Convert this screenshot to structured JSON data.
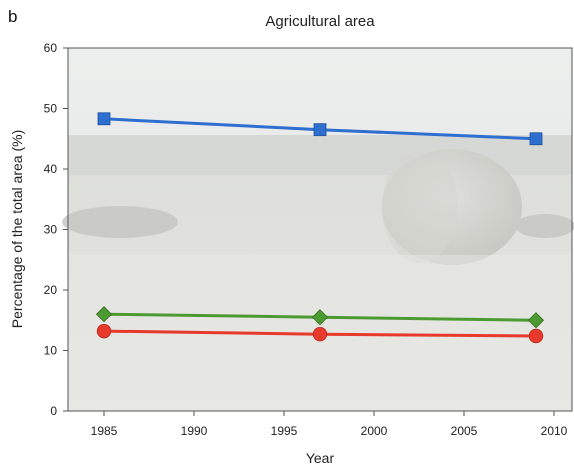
{
  "panel_letter": "b",
  "chart_data": {
    "type": "line",
    "title": "Agricultural area",
    "xlabel": "Year",
    "ylabel": "Percentage of the total area (%)",
    "xlim": [
      1983,
      2011
    ],
    "ylim": [
      0,
      60
    ],
    "xticks": [
      1985,
      1990,
      1995,
      2000,
      2005,
      2010
    ],
    "yticks": [
      0,
      10,
      20,
      30,
      40,
      50,
      60
    ],
    "grid": false,
    "legend": "none",
    "background": "faded photograph of a harvested field with a round hay bale",
    "series": [
      {
        "color": "#2f6fd0",
        "marker": "square",
        "x": [
          1985,
          1997,
          2009
        ],
        "y": [
          48.3,
          46.5,
          45.0
        ]
      },
      {
        "color": "#4c9a32",
        "marker": "diamond",
        "x": [
          1985,
          1997,
          2009
        ],
        "y": [
          16.0,
          15.5,
          15.0
        ]
      },
      {
        "color": "#e83a2c",
        "marker": "circle",
        "x": [
          1985,
          1997,
          2009
        ],
        "y": [
          13.2,
          12.7,
          12.4
        ]
      }
    ]
  }
}
